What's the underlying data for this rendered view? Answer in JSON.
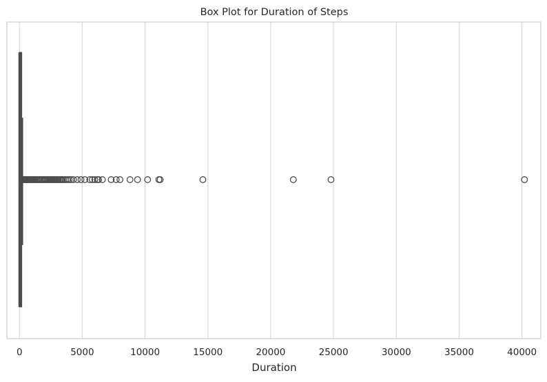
{
  "chart_data": {
    "type": "boxplot",
    "orientation": "horizontal",
    "title": "Box Plot for Duration of Steps",
    "xlabel": "Duration",
    "ylabel": "",
    "xlim": [
      -1000,
      41500
    ],
    "xticks": [
      0,
      5000,
      10000,
      15000,
      20000,
      25000,
      30000,
      35000,
      40000
    ],
    "xtick_labels": [
      "0",
      "5000",
      "10000",
      "15000",
      "20000",
      "25000",
      "30000",
      "35000",
      "40000"
    ],
    "grid": "vertical",
    "box": {
      "whisker_low": 0,
      "q1": 20,
      "median": 45,
      "q3": 95,
      "whisker_high": 210
    },
    "outliers": [
      250,
      300,
      350,
      400,
      460,
      520,
      580,
      650,
      720,
      800,
      880,
      960,
      1040,
      1120,
      1200,
      1290,
      1380,
      1470,
      1560,
      1650,
      1740,
      1830,
      1920,
      2010,
      2100,
      2200,
      2300,
      2400,
      2500,
      2600,
      2700,
      2800,
      2900,
      3000,
      3100,
      3200,
      3300,
      3400,
      3500,
      3650,
      3800,
      3950,
      4100,
      4300,
      4600,
      4900,
      5200,
      5600,
      5800,
      6000,
      6200,
      6300,
      6600,
      7300,
      7700,
      8000,
      8800,
      9400,
      10200,
      11100,
      11200,
      14600,
      21800,
      24800,
      40200
    ],
    "colors": {
      "box": "#4c4c4c",
      "outlier_edge": "#4c4c4c",
      "grid": "#d9d9d9",
      "frame": "#cccccc",
      "text": "#262626"
    }
  }
}
